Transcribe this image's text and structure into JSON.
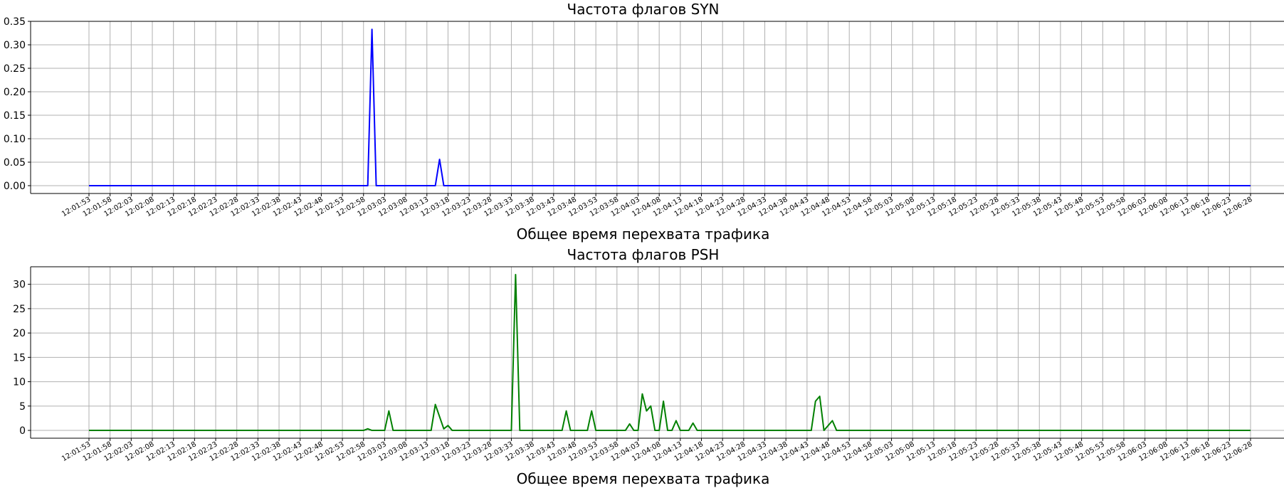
{
  "chart_data": [
    {
      "type": "line",
      "title": "Частота флагов SYN",
      "xlabel": "Общее время перехвата трафика",
      "ylabel": "",
      "ylim": [
        -0.0167,
        0.35
      ],
      "yticks": [
        0.0,
        0.05,
        0.1,
        0.15,
        0.2,
        0.25,
        0.3,
        0.35
      ],
      "ytick_labels": [
        "0.00",
        "0.05",
        "0.10",
        "0.15",
        "0.20",
        "0.25",
        "0.30",
        "0.35"
      ],
      "grid": true,
      "x_start": "12:01:53",
      "x_end": "12:06:28",
      "xtick_labels": [
        "12:01:53",
        "12:01:58",
        "12:02:03",
        "12:02:08",
        "12:02:13",
        "12:02:18",
        "12:02:23",
        "12:02:28",
        "12:02:33",
        "12:02:38",
        "12:02:43",
        "12:02:48",
        "12:02:53",
        "12:02:58",
        "12:03:03",
        "12:03:08",
        "12:03:13",
        "12:03:18",
        "12:03:23",
        "12:03:28",
        "12:03:33",
        "12:03:38",
        "12:03:43",
        "12:03:48",
        "12:03:53",
        "12:03:58",
        "12:04:03",
        "12:04:08",
        "12:04:13",
        "12:04:18",
        "12:04:23",
        "12:04:28",
        "12:04:33",
        "12:04:38",
        "12:04:43",
        "12:04:48",
        "12:04:53",
        "12:04:58",
        "12:05:03",
        "12:05:08",
        "12:05:13",
        "12:05:18",
        "12:05:23",
        "12:05:28",
        "12:05:33",
        "12:05:38",
        "12:05:43",
        "12:05:48",
        "12:05:53",
        "12:05:58",
        "12:06:03",
        "12:06:08",
        "12:06:13",
        "12:06:18",
        "12:06:23",
        "12:06:28"
      ],
      "color": "#0000ff",
      "points": [
        {
          "x": "12:01:53",
          "y": 0
        },
        {
          "x": "12:02:59",
          "y": 0
        },
        {
          "x": "12:03:00",
          "y": 0.333
        },
        {
          "x": "12:03:01",
          "y": 0
        },
        {
          "x": "12:03:15",
          "y": 0
        },
        {
          "x": "12:03:16",
          "y": 0.056
        },
        {
          "x": "12:03:17",
          "y": 0
        },
        {
          "x": "12:06:28",
          "y": 0
        }
      ]
    },
    {
      "type": "line",
      "title": "Частота флагов PSH",
      "xlabel": "Общее время перехвата трафика",
      "ylabel": "",
      "ylim": [
        -1.6,
        33.6
      ],
      "yticks": [
        0,
        5,
        10,
        15,
        20,
        25,
        30
      ],
      "ytick_labels": [
        "0",
        "5",
        "10",
        "15",
        "20",
        "25",
        "30"
      ],
      "grid": true,
      "x_start": "12:01:53",
      "x_end": "12:06:28",
      "xtick_labels": [
        "12:01:53",
        "12:01:58",
        "12:02:03",
        "12:02:08",
        "12:02:13",
        "12:02:18",
        "12:02:23",
        "12:02:28",
        "12:02:33",
        "12:02:38",
        "12:02:43",
        "12:02:48",
        "12:02:53",
        "12:02:58",
        "12:03:03",
        "12:03:08",
        "12:03:13",
        "12:03:18",
        "12:03:23",
        "12:03:28",
        "12:03:33",
        "12:03:38",
        "12:03:43",
        "12:03:48",
        "12:03:53",
        "12:03:58",
        "12:04:03",
        "12:04:08",
        "12:04:13",
        "12:04:18",
        "12:04:23",
        "12:04:28",
        "12:04:33",
        "12:04:38",
        "12:04:43",
        "12:04:48",
        "12:04:53",
        "12:04:58",
        "12:05:03",
        "12:05:08",
        "12:05:13",
        "12:05:18",
        "12:05:23",
        "12:05:28",
        "12:05:33",
        "12:05:38",
        "12:05:43",
        "12:05:48",
        "12:05:53",
        "12:05:58",
        "12:06:03",
        "12:06:08",
        "12:06:13",
        "12:06:18",
        "12:06:23",
        "12:06:28"
      ],
      "color": "#008000",
      "points": [
        {
          "x": "12:01:53",
          "y": 0
        },
        {
          "x": "12:02:58",
          "y": 0
        },
        {
          "x": "12:02:59",
          "y": 0.33
        },
        {
          "x": "12:03:00",
          "y": 0
        },
        {
          "x": "12:03:03",
          "y": 0
        },
        {
          "x": "12:03:04",
          "y": 4
        },
        {
          "x": "12:03:05",
          "y": 0
        },
        {
          "x": "12:03:14",
          "y": 0
        },
        {
          "x": "12:03:15",
          "y": 5.33
        },
        {
          "x": "12:03:17",
          "y": 0.33
        },
        {
          "x": "12:03:18",
          "y": 1
        },
        {
          "x": "12:03:19",
          "y": 0
        },
        {
          "x": "12:03:33",
          "y": 0
        },
        {
          "x": "12:03:34",
          "y": 32
        },
        {
          "x": "12:03:35",
          "y": 0
        },
        {
          "x": "12:03:45",
          "y": 0
        },
        {
          "x": "12:03:46",
          "y": 4
        },
        {
          "x": "12:03:47",
          "y": 0
        },
        {
          "x": "12:03:51",
          "y": 0
        },
        {
          "x": "12:03:52",
          "y": 4
        },
        {
          "x": "12:03:53",
          "y": 0
        },
        {
          "x": "12:04:00",
          "y": 0
        },
        {
          "x": "12:04:01",
          "y": 1.33
        },
        {
          "x": "12:04:02",
          "y": 0
        },
        {
          "x": "12:04:03",
          "y": 0
        },
        {
          "x": "12:04:04",
          "y": 7.5
        },
        {
          "x": "12:04:05",
          "y": 4
        },
        {
          "x": "12:04:06",
          "y": 5
        },
        {
          "x": "12:04:07",
          "y": 0
        },
        {
          "x": "12:04:08",
          "y": 0
        },
        {
          "x": "12:04:09",
          "y": 6
        },
        {
          "x": "12:04:10",
          "y": 0
        },
        {
          "x": "12:04:11",
          "y": 0
        },
        {
          "x": "12:04:12",
          "y": 2
        },
        {
          "x": "12:04:13",
          "y": 0
        },
        {
          "x": "12:04:15",
          "y": 0
        },
        {
          "x": "12:04:16",
          "y": 1.5
        },
        {
          "x": "12:04:17",
          "y": 0
        },
        {
          "x": "12:04:44",
          "y": 0
        },
        {
          "x": "12:04:45",
          "y": 6
        },
        {
          "x": "12:04:46",
          "y": 7
        },
        {
          "x": "12:04:47",
          "y": 0
        },
        {
          "x": "12:04:49",
          "y": 2
        },
        {
          "x": "12:04:50",
          "y": 0
        },
        {
          "x": "12:06:28",
          "y": 0
        }
      ]
    }
  ]
}
